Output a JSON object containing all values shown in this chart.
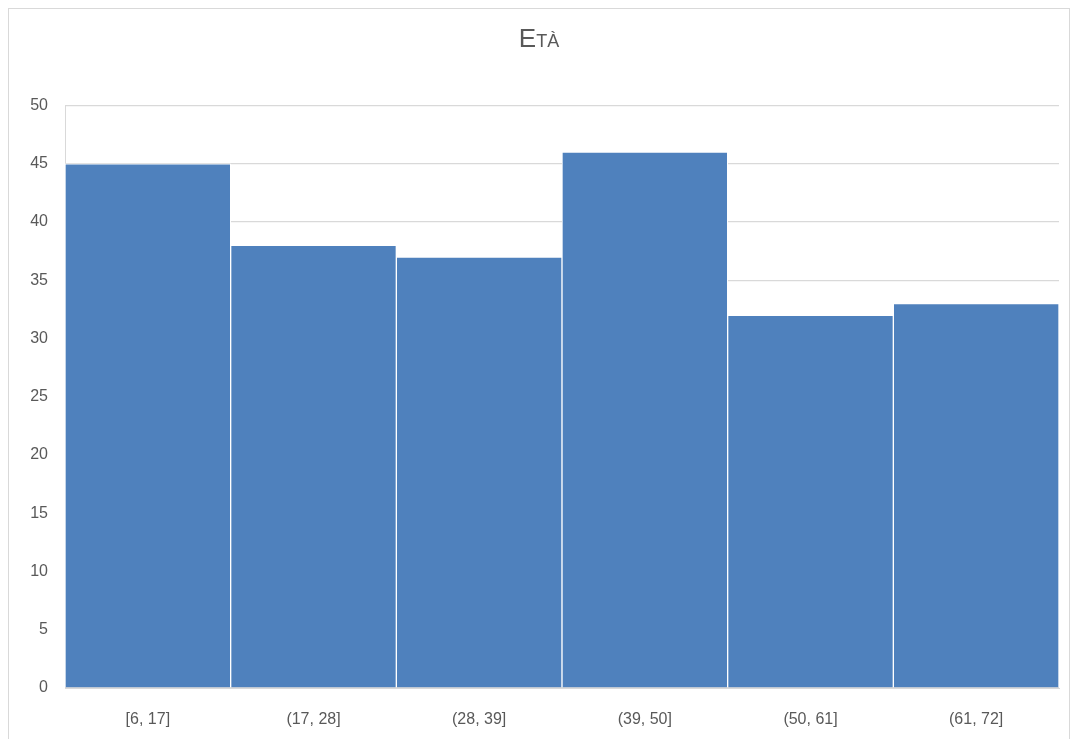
{
  "chart_data": {
    "type": "histogram",
    "title": "Età",
    "categories": [
      "[6, 17]",
      "(17, 28]",
      "(28, 39]",
      "(39, 50]",
      "(50, 61]",
      "(61, 72]"
    ],
    "values": [
      45,
      38,
      37,
      46,
      32,
      33
    ],
    "color": "#4f81bd",
    "ylim": [
      0,
      50
    ],
    "yticks": [
      0,
      5,
      10,
      15,
      20,
      25,
      30,
      35,
      40,
      45,
      50
    ],
    "grid": "y"
  }
}
